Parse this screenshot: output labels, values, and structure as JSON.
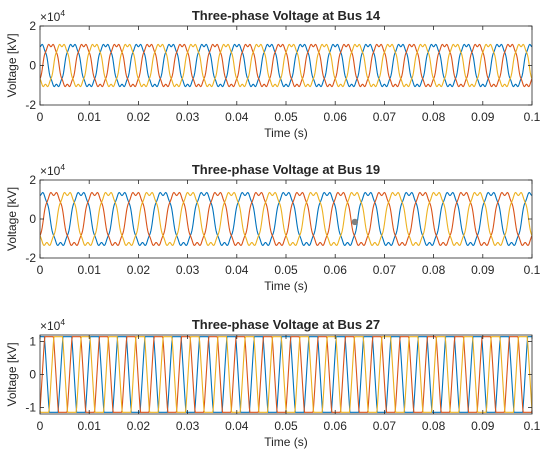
{
  "chart_data": [
    {
      "type": "line",
      "title": "Three-phase Voltage at Bus 14",
      "xlabel": "Time (s)",
      "ylabel": "Voltage [kV]",
      "xlim": [
        0,
        0.1
      ],
      "ylim": [
        -2,
        2
      ],
      "y_multiplier_base": "×10",
      "y_multiplier_exp": "4",
      "xticks": [
        "0",
        "0.01",
        "0.02",
        "0.03",
        "0.04",
        "0.05",
        "0.06",
        "0.07",
        "0.08",
        "0.09",
        "0.1"
      ],
      "yticks": [
        "-2",
        "0",
        "2"
      ],
      "frequency_hz": 150,
      "amplitude": 1.3,
      "waveform": "distorted-sine",
      "series": [
        {
          "color": "#0072BD",
          "phase_deg": 0
        },
        {
          "color": "#D95319",
          "phase_deg": -120
        },
        {
          "color": "#EDB120",
          "phase_deg": 120
        }
      ]
    },
    {
      "type": "line",
      "title": "Three-phase Voltage at Bus 19",
      "xlabel": "Time (s)",
      "ylabel": "Voltage [kV]",
      "xlim": [
        0,
        0.1
      ],
      "ylim": [
        -2,
        2
      ],
      "y_multiplier_base": "×10",
      "y_multiplier_exp": "4",
      "xticks": [
        "0",
        "0.01",
        "0.02",
        "0.03",
        "0.04",
        "0.05",
        "0.06",
        "0.07",
        "0.08",
        "0.09",
        "0.1"
      ],
      "yticks": [
        "-2",
        "0",
        "2"
      ],
      "frequency_hz": 120,
      "amplitude": 1.65,
      "waveform": "distorted-sine",
      "marker_point": {
        "x": 0.064,
        "y": -0.15,
        "color": "#808080"
      },
      "series": [
        {
          "color": "#0072BD",
          "phase_deg": 0
        },
        {
          "color": "#D95319",
          "phase_deg": -120
        },
        {
          "color": "#EDB120",
          "phase_deg": 120
        }
      ]
    },
    {
      "type": "line",
      "title": "Three-phase Voltage at Bus 27",
      "xlabel": "Time (s)",
      "ylabel": "Voltage [kV]",
      "xlim": [
        0,
        0.1
      ],
      "ylim": [
        -1.2,
        1.2
      ],
      "y_multiplier_base": "×10",
      "y_multiplier_exp": "4",
      "xticks": [
        "0",
        "0.01",
        "0.02",
        "0.03",
        "0.04",
        "0.05",
        "0.06",
        "0.07",
        "0.08",
        "0.09",
        "0.1"
      ],
      "yticks": [
        "-1",
        "0",
        "1"
      ],
      "frequency_hz": 180,
      "amplitude": 1.15,
      "waveform": "clipped-square",
      "series": [
        {
          "color": "#0072BD",
          "phase_deg": 0
        },
        {
          "color": "#D95319",
          "phase_deg": -120
        },
        {
          "color": "#EDB120",
          "phase_deg": 120
        }
      ]
    }
  ]
}
